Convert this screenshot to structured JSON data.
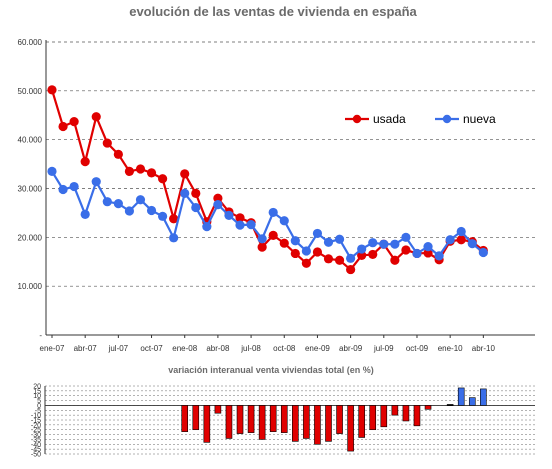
{
  "chart_data": [
    {
      "type": "line",
      "title": "evolución de las ventas de vivienda en españa",
      "x": [
        "ene-07",
        "feb-07",
        "mar-07",
        "abr-07",
        "may-07",
        "jun-07",
        "jul-07",
        "ago-07",
        "sep-07",
        "oct-07",
        "nov-07",
        "dic-07",
        "ene-08",
        "feb-08",
        "mar-08",
        "abr-08",
        "may-08",
        "jun-08",
        "jul-08",
        "ago-08",
        "sep-08",
        "oct-08",
        "nov-08",
        "dic-08",
        "ene-09",
        "feb-09",
        "mar-09",
        "abr-09",
        "may-09",
        "jun-09",
        "jul-09",
        "ago-09",
        "sep-09",
        "oct-09",
        "nov-09",
        "dic-09",
        "ene-10",
        "feb-10",
        "mar-10",
        "abr-10"
      ],
      "xtick_labels": [
        "ene-07",
        "abr-07",
        "jul-07",
        "oct-07",
        "ene-08",
        "abr-08",
        "jul-08",
        "oct-08",
        "ene-09",
        "abr-09",
        "jul-09",
        "oct-09",
        "ene-10",
        "abr-10"
      ],
      "ylim": [
        0,
        60000
      ],
      "ytick_labels": [
        "-",
        "10.000",
        "20.000",
        "30.000",
        "40.000",
        "50.000",
        "60.000"
      ],
      "grid": true,
      "legend_position": "right",
      "series": [
        {
          "name": "usada",
          "color": "#e00000",
          "values": [
            50200,
            42700,
            43700,
            35500,
            44700,
            39300,
            37000,
            33500,
            34000,
            33200,
            32000,
            23800,
            33000,
            29000,
            23200,
            28000,
            25200,
            24000,
            23000,
            18000,
            20400,
            18800,
            16700,
            14700,
            17000,
            15600,
            15300,
            13400,
            16300,
            16500,
            18600,
            15300,
            17400,
            16700,
            16800,
            15400,
            19200,
            19500,
            19100,
            17300
          ]
        },
        {
          "name": "nueva",
          "color": "#3a6ee8",
          "values": [
            33500,
            29800,
            30400,
            24700,
            31400,
            27300,
            26900,
            25400,
            27700,
            25500,
            24300,
            19900,
            29000,
            26100,
            22200,
            26700,
            24500,
            22500,
            22600,
            19700,
            25100,
            23400,
            19300,
            17200,
            20800,
            19000,
            19600,
            15700,
            17600,
            18900,
            18600,
            18600,
            20000,
            16700,
            18100,
            16200,
            19500,
            21200,
            18700,
            16900
          ]
        }
      ]
    },
    {
      "type": "bar",
      "title": "variación interanual venta viviendas total (en %)",
      "ylim": [
        -50,
        20
      ],
      "ytick_labels": [
        "20",
        "15",
        "10",
        "5",
        "0",
        "-5",
        "-10",
        "-15",
        "-20",
        "-25",
        "-30",
        "-35",
        "-40",
        "-45",
        "-50"
      ],
      "categories_start": "ene-07",
      "values": [
        null,
        null,
        null,
        null,
        null,
        null,
        null,
        null,
        null,
        null,
        null,
        null,
        -27,
        -25,
        -38,
        -8,
        -34,
        -29,
        -28,
        -35,
        -27,
        -28,
        -37,
        -34,
        -40,
        -37,
        -29,
        -47,
        -33,
        -25,
        -22,
        -10,
        -16,
        -21,
        -4,
        null,
        1,
        18,
        8,
        17
      ],
      "colors": {
        "negative": "#e00000",
        "positive": "#3a6ee8",
        "near_zero": "#000000"
      }
    }
  ]
}
